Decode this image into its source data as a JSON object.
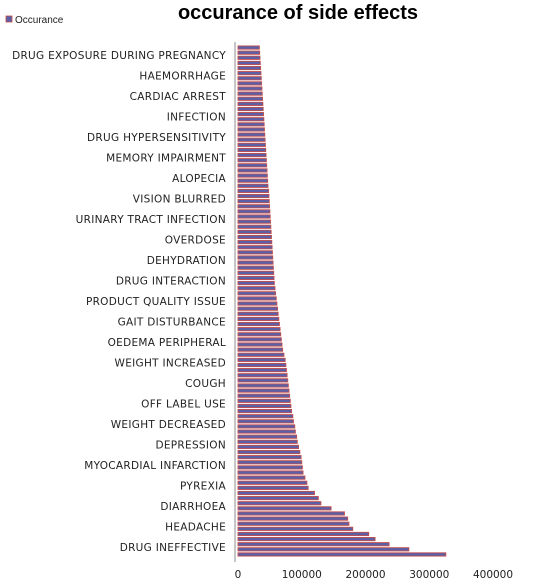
{
  "chart_data": {
    "type": "bar",
    "orientation": "horizontal",
    "title": "occurance of side effects",
    "legend": {
      "placement": "top-left",
      "entries": [
        "Occurance"
      ]
    },
    "series": [
      {
        "name": "Occurance",
        "color": "#5b5fa8",
        "edge_color": "#c0504d"
      }
    ],
    "xlim": [
      0,
      400000
    ],
    "xticks": [
      "0",
      "100000",
      "200000",
      "300000",
      "400000"
    ],
    "grid": false,
    "category_labels": [
      "DRUG INEFFECTIVE",
      "HEADACHE",
      "DIARRHOEA",
      "PYREXIA",
      "MYOCARDIAL INFARCTION",
      "DEPRESSION",
      "WEIGHT DECREASED",
      "OFF LABEL USE",
      "COUGH",
      "WEIGHT INCREASED",
      "OEDEMA PERIPHERAL",
      "GAIT DISTURBANCE",
      "PRODUCT QUALITY ISSUE",
      "DRUG INTERACTION",
      "DEHYDRATION",
      "OVERDOSE",
      "URINARY TRACT INFECTION",
      "VISION BLURRED",
      "ALOPECIA",
      "MEMORY IMPAIRMENT",
      "DRUG HYPERSENSITIVITY",
      "INFECTION",
      "CARDIAC ARREST",
      "HAEMORRHAGE",
      "DRUG EXPOSURE DURING PREGNANCY"
    ],
    "values": [
      326000,
      268000,
      237000,
      215000,
      205000,
      180000,
      174000,
      172000,
      167000,
      146000,
      130000,
      126000,
      120000,
      110000,
      108000,
      105000,
      102000,
      101000,
      100000,
      99000,
      97000,
      95000,
      93000,
      92000,
      90000,
      89000,
      87000,
      86000,
      84000,
      83000,
      82000,
      81000,
      80000,
      79000,
      78000,
      77000,
      76000,
      75000,
      74000,
      72000,
      70000,
      69000,
      68000,
      67000,
      66000,
      65000,
      64000,
      63000,
      62000,
      61000,
      60000,
      59000,
      58000,
      57000,
      56500,
      56000,
      55500,
      55000,
      54500,
      54000,
      53500,
      53000,
      52500,
      52000,
      51500,
      51000,
      50500,
      50000,
      49500,
      49000,
      48500,
      48000,
      47000,
      46500,
      46000,
      45500,
      45000,
      44500,
      44000,
      43500,
      43000,
      42500,
      42000,
      41500,
      41000,
      40500,
      40000,
      39500,
      39000,
      38500,
      38000,
      37500,
      37000,
      36500,
      36000,
      35500,
      35000,
      34500,
      34000,
      33500
    ]
  }
}
